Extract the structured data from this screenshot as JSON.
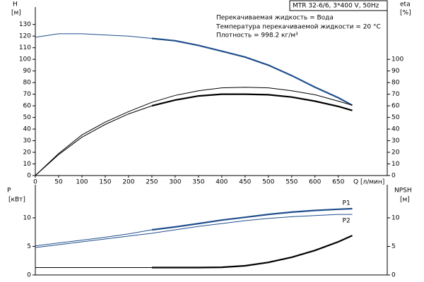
{
  "chart_data": [
    {
      "type": "line",
      "ylabel": "H",
      "yunit": "[м]",
      "y2label": "eta",
      "y2unit": "[%]",
      "xlabel": "Q [л/мин]",
      "annotations": [
        "MTR 32-6/6, 3*400 V, 50Hz",
        "Перекачиваемая жидкость = Вода",
        "Температура перекачиваемой жидкости = 20 °C",
        "Плотность = 998.2 кг/м³"
      ],
      "x": [
        0,
        50,
        100,
        150,
        200,
        250,
        300,
        350,
        400,
        450,
        500,
        550,
        600,
        650,
        680
      ],
      "xlim": [
        0,
        755
      ],
      "xticks": [
        0,
        50,
        100,
        150,
        200,
        250,
        300,
        350,
        400,
        450,
        500,
        550,
        600,
        650
      ],
      "ylim": [
        0,
        145
      ],
      "yticks": [
        0,
        10,
        20,
        30,
        40,
        50,
        60,
        70,
        80,
        90,
        100,
        110,
        120,
        130
      ],
      "y2lim": [
        0,
        145
      ],
      "y2ticks": [
        0,
        10,
        20,
        30,
        40,
        50,
        60,
        70,
        80,
        90,
        100
      ],
      "series": [
        {
          "color": "#1f4e8c",
          "width": 1,
          "values": [
            119,
            122,
            122,
            121,
            120,
            118,
            null,
            null,
            null,
            null,
            null,
            null,
            null,
            null,
            null
          ]
        },
        {
          "color": "#1f4e8c",
          "width": 2.2,
          "values": [
            null,
            null,
            null,
            null,
            null,
            118,
            116,
            112,
            107,
            102,
            95,
            86,
            76,
            67,
            60.5
          ]
        },
        {
          "color": "#000000",
          "width": 1,
          "axis": "y2",
          "values": [
            0,
            19,
            35,
            46,
            55,
            63,
            69,
            73,
            75.5,
            76,
            75.5,
            73,
            69.5,
            64,
            60.5
          ]
        },
        {
          "color": "#000000",
          "width": 1,
          "axis": "y2",
          "values": [
            0,
            18,
            33,
            44,
            53,
            60,
            null,
            null,
            null,
            null,
            null,
            null,
            null,
            null,
            null
          ]
        },
        {
          "color": "#000000",
          "width": 2.2,
          "axis": "y2",
          "values": [
            null,
            null,
            null,
            null,
            null,
            60,
            65,
            68.5,
            70,
            70,
            69.5,
            67.5,
            64,
            59.5,
            56
          ]
        }
      ]
    },
    {
      "type": "line",
      "ylabel": "P",
      "yunit": "[кВт]",
      "y2label": "NPSH",
      "y2unit": "[м]",
      "x": [
        0,
        50,
        100,
        150,
        200,
        250,
        300,
        350,
        400,
        450,
        500,
        550,
        600,
        650,
        680
      ],
      "xlim": [
        0,
        755
      ],
      "ylim": [
        0,
        15.8
      ],
      "yticks": [
        0,
        5,
        10
      ],
      "y2lim": [
        0,
        15.8
      ],
      "y2ticks": [
        0,
        5,
        10
      ],
      "series": [
        {
          "color": "#1f4e8c",
          "width": 1,
          "values": [
            5.1,
            5.6,
            6.1,
            6.6,
            7.2,
            7.9,
            null,
            null,
            null,
            null,
            null,
            null,
            null,
            null,
            null
          ]
        },
        {
          "name": "P1",
          "color": "#1f4e8c",
          "width": 2.2,
          "values": [
            null,
            null,
            null,
            null,
            null,
            7.9,
            8.4,
            9.0,
            9.6,
            10.1,
            10.6,
            11.0,
            11.3,
            11.5,
            11.6
          ]
        },
        {
          "name": "P2",
          "color": "#1f4e8c",
          "width": 1,
          "values": [
            4.8,
            5.3,
            5.8,
            6.3,
            6.8,
            7.3,
            7.9,
            8.5,
            9.0,
            9.5,
            9.9,
            10.2,
            10.4,
            10.6,
            10.6
          ]
        },
        {
          "color": "#000000",
          "width": 1,
          "axis": "y2",
          "values": [
            1.3,
            1.3,
            1.3,
            1.3,
            1.3,
            1.3,
            null,
            null,
            null,
            null,
            null,
            null,
            null,
            null,
            null
          ]
        },
        {
          "color": "#000000",
          "width": 2.2,
          "axis": "y2",
          "values": [
            null,
            null,
            null,
            null,
            null,
            1.3,
            1.3,
            1.3,
            1.35,
            1.6,
            2.2,
            3.1,
            4.3,
            5.8,
            6.9
          ]
        }
      ]
    }
  ]
}
